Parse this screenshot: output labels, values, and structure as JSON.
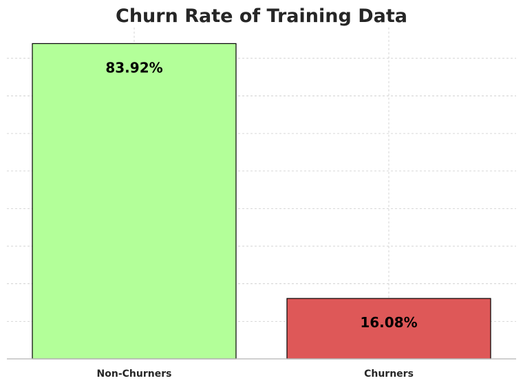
{
  "chart_data": {
    "type": "bar",
    "title": "Churn Rate of Training Data",
    "xlabel": "",
    "ylabel": "",
    "categories": [
      "Non-Churners",
      "Churners"
    ],
    "values": [
      83.92,
      16.08
    ],
    "value_labels": [
      "83.92%",
      "16.08%"
    ],
    "colors": [
      "#b3ff99",
      "#de5858"
    ],
    "ylim": [
      0,
      88
    ],
    "grid": true,
    "legend": "none"
  }
}
